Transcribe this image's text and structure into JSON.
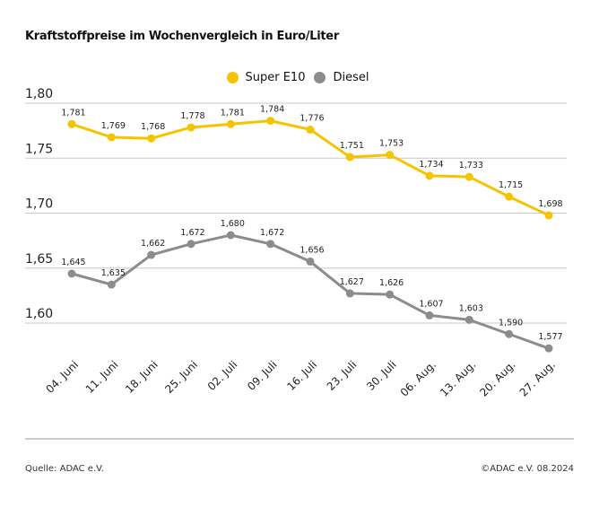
{
  "chart_data": {
    "type": "line",
    "title": "Kraftstoffpreise im Wochenvergleich in Euro/Liter",
    "categories": [
      "04. Juni",
      "11. Juni",
      "18. Juni",
      "25. Juni",
      "02. Juli",
      "09. Juli",
      "16. Juli",
      "23. Juli",
      "30. Juli",
      "06. Aug.",
      "13. Aug.",
      "20. Aug.",
      "27. Aug."
    ],
    "series": [
      {
        "name": "Super E10",
        "color": "#f5c400",
        "values": [
          1.781,
          1.769,
          1.768,
          1.778,
          1.781,
          1.784,
          1.776,
          1.751,
          1.753,
          1.734,
          1.733,
          1.715,
          1.698
        ],
        "labels": [
          "1,781",
          "1,769",
          "1,768",
          "1,778",
          "1,781",
          "1,784",
          "1,776",
          "1,751",
          "1,753",
          "1,734",
          "1,733",
          "1,715",
          "1,698"
        ]
      },
      {
        "name": "Diesel",
        "color": "#8c8c8c",
        "values": [
          1.645,
          1.635,
          1.662,
          1.672,
          1.68,
          1.672,
          1.656,
          1.627,
          1.626,
          1.607,
          1.603,
          1.59,
          1.577
        ],
        "labels": [
          "1,645",
          "1,635",
          "1,662",
          "1,672",
          "1,680",
          "1,672",
          "1,656",
          "1,627",
          "1,626",
          "1,607",
          "1,603",
          "1,590",
          "1,577"
        ]
      }
    ],
    "yticks": [
      1.8,
      1.75,
      1.7,
      1.65,
      1.6
    ],
    "ytick_labels": [
      "1,80",
      "1,75",
      "1,70",
      "1,65",
      "1,60"
    ],
    "ylim": [
      1.6,
      1.8
    ],
    "grid": true,
    "legend_position": "top-center",
    "xlabel": "",
    "ylabel": ""
  },
  "footer": {
    "source": "Quelle: ADAC e.V.",
    "copyright": "©ADAC e.V. 08.2024"
  }
}
